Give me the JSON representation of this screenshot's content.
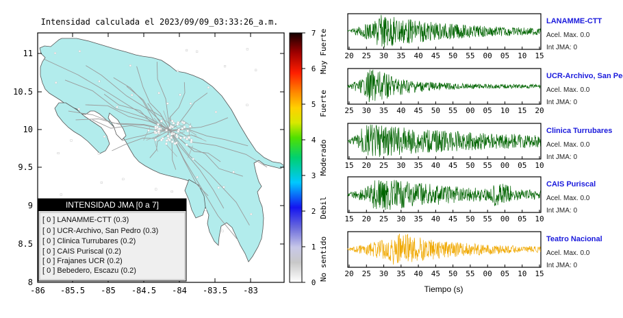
{
  "map": {
    "title": "Intensidad calculada el 2023/09/09_03:33:26_a.m.",
    "lat_ticks": [
      "11",
      "10.5",
      "10",
      "9.5",
      "9",
      "8.5",
      "8"
    ],
    "lon_ticks": [
      "-86",
      "-85.5",
      "-85",
      "-84.5",
      "-84",
      "-83.5",
      "-83"
    ],
    "legend": {
      "header": "INTENSIDAD JMA [0 a 7]",
      "items": [
        "[ 0 ]  LANAMME-CTT (0.3)",
        "[ 0 ]  UCR-Archivo, San Pedro (0.3)",
        "[ 0 ]  Clinica Turrubares (0.2)",
        "[ 0 ]  CAIS Puriscal (0.2)",
        "[ 0 ]  Frajanes UCR (0.2)",
        "[ 0 ]  Bebedero, Escazu (0.2)"
      ]
    },
    "colors": {
      "land": "#b2ecec",
      "road": "#9a9a9a",
      "border": "#555555"
    }
  },
  "colorbar": {
    "ticks": [
      "7",
      "6",
      "5",
      "4",
      "3",
      "2",
      "1",
      "0"
    ],
    "labels": [
      "Muy Fuerte",
      "Fuerte",
      "Moderado",
      "Debil",
      "No sentido"
    ]
  },
  "chart_data": {
    "type": "line",
    "xlabel": "Tiempo (s)",
    "panels": [
      {
        "station": "LANAMME-CTT",
        "acel": "Acel. Max. 0.0",
        "int": "Int JMA: 0",
        "color": "#006400",
        "ticks": [
          "20",
          "25",
          "30",
          "35",
          "40",
          "45",
          "50",
          "55",
          "00",
          "05",
          "10",
          "15"
        ]
      },
      {
        "station": "UCR-Archivo, San Pedro",
        "acel": "Acel. Max. 0.0",
        "int": "Int JMA: 0",
        "color": "#006400",
        "ticks": [
          "25",
          "30",
          "35",
          "40",
          "45",
          "50",
          "55",
          "00",
          "05",
          "10",
          "15",
          "20"
        ]
      },
      {
        "station": "Clinica Turrubares",
        "acel": "Acel. Max. 0.0",
        "int": "Int JMA: 0",
        "color": "#006400",
        "ticks": [
          "15",
          "20",
          "25",
          "30",
          "35",
          "40",
          "45",
          "50",
          "55",
          "00",
          "05",
          "10"
        ]
      },
      {
        "station": "CAIS Puriscal",
        "acel": "Acel. Max. 0.0",
        "int": "Int JMA: 0",
        "color": "#006400",
        "ticks": [
          "15",
          "20",
          "25",
          "30",
          "35",
          "40",
          "45",
          "50",
          "55",
          "00",
          "05",
          "10"
        ]
      },
      {
        "station": "Teatro Nacional",
        "acel": "Acel. Max. 0.0",
        "int": "Int JMA: 0",
        "color": "#f0a800",
        "ticks": [
          "20",
          "25",
          "30",
          "35",
          "40",
          "45",
          "50",
          "55",
          "00",
          "05",
          "10",
          "15"
        ]
      }
    ]
  }
}
